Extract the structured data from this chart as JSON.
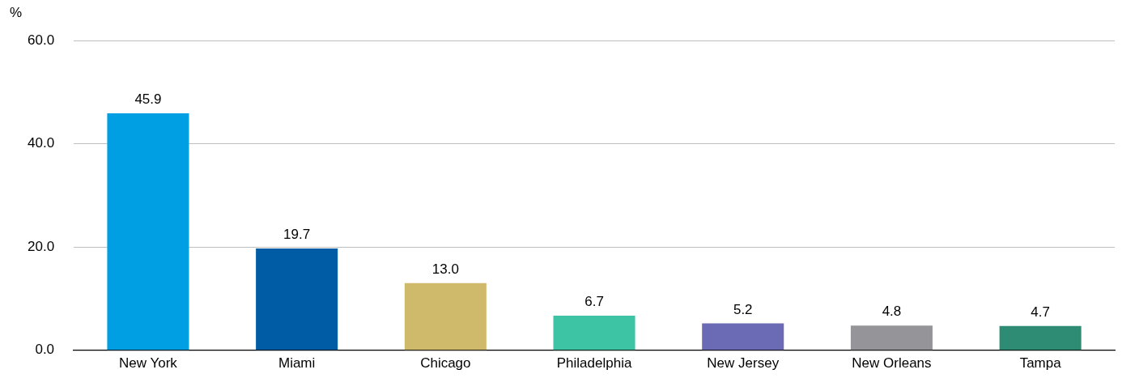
{
  "chart_data": {
    "type": "bar",
    "ylabel": "%",
    "categories": [
      "New York",
      "Miami",
      "Chicago",
      "Philadelphia",
      "New Jersey",
      "New Orleans",
      "Tampa"
    ],
    "values": [
      45.9,
      19.7,
      13.0,
      6.7,
      5.2,
      4.8,
      4.7
    ],
    "colors": [
      "#009fe3",
      "#005ca5",
      "#cfb96b",
      "#3cc4a4",
      "#6b6bb5",
      "#959599",
      "#2e8b74"
    ],
    "value_labels": [
      "45.9",
      "19.7",
      "13.0",
      "6.7",
      "5.2",
      "4.8",
      "4.7"
    ],
    "ylim": [
      0,
      60
    ],
    "yticks": [
      {
        "value": 0,
        "label": "0.0"
      },
      {
        "value": 20,
        "label": "20.0"
      },
      {
        "value": 40,
        "label": "40.0"
      },
      {
        "value": 60,
        "label": "60.0"
      }
    ],
    "grid": "y",
    "legend": false
  }
}
